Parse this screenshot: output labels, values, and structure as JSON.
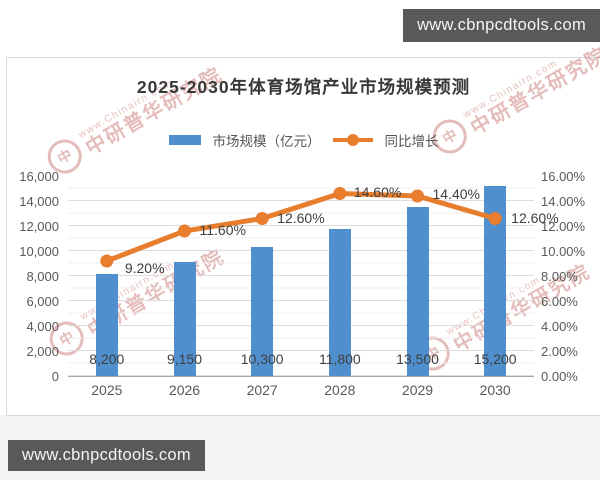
{
  "badges": {
    "top_right": {
      "label": "www.cbnpcdtools.com"
    },
    "bottom_left": {
      "label": "www.cbnpcdtools.com"
    },
    "background": "#58595b",
    "text_color": "#f5f5f5"
  },
  "watermark": {
    "line1": "www.Chinairn.com",
    "line2": "中研普华研究院",
    "logo_char": "中",
    "color": "#b03a35"
  },
  "chart_data": {
    "type": "bar",
    "title": "2025-2030年体育场馆产业市场规模预测",
    "categories": [
      "2025",
      "2026",
      "2027",
      "2028",
      "2029",
      "2030"
    ],
    "series": [
      {
        "name": "市场规模（亿元）",
        "type": "bar",
        "axis": "left",
        "color": "#4f8fce",
        "values": [
          8200,
          9150,
          10300,
          11800,
          13500,
          15200
        ],
        "labels": [
          "8,200",
          "9,150",
          "10,300",
          "11,800",
          "13,500",
          "15,200"
        ]
      },
      {
        "name": "同比增长",
        "type": "line",
        "axis": "right",
        "color": "#e87d2e",
        "values": [
          9.2,
          11.6,
          12.6,
          14.6,
          14.4,
          12.6
        ],
        "labels": [
          "9.20%",
          "11.60%",
          "12.60%",
          "14.60%",
          "14.40%",
          "12.60%"
        ]
      }
    ],
    "left_axis": {
      "min": 0,
      "max": 16000,
      "ticks": [
        "16,000",
        "14,000",
        "12,000",
        "10,000",
        "8,000",
        "6,000",
        "4,000",
        "2,000",
        "0"
      ]
    },
    "right_axis": {
      "min": 0,
      "max": 16,
      "ticks": [
        "16.00%",
        "14.00%",
        "12.00%",
        "10.00%",
        "8.00%",
        "6.00%",
        "4.00%",
        "2.00%",
        "0.00%"
      ]
    },
    "legend": {
      "position": "top",
      "items": [
        {
          "label": "市场规模（亿元）",
          "color": "#4f8fce",
          "marker": "bar"
        },
        {
          "label": "同比增长",
          "color": "#e87d2e",
          "marker": "line-dot"
        }
      ]
    },
    "grid": {
      "major": true,
      "minor": true,
      "legend_position": "top-center"
    }
  }
}
